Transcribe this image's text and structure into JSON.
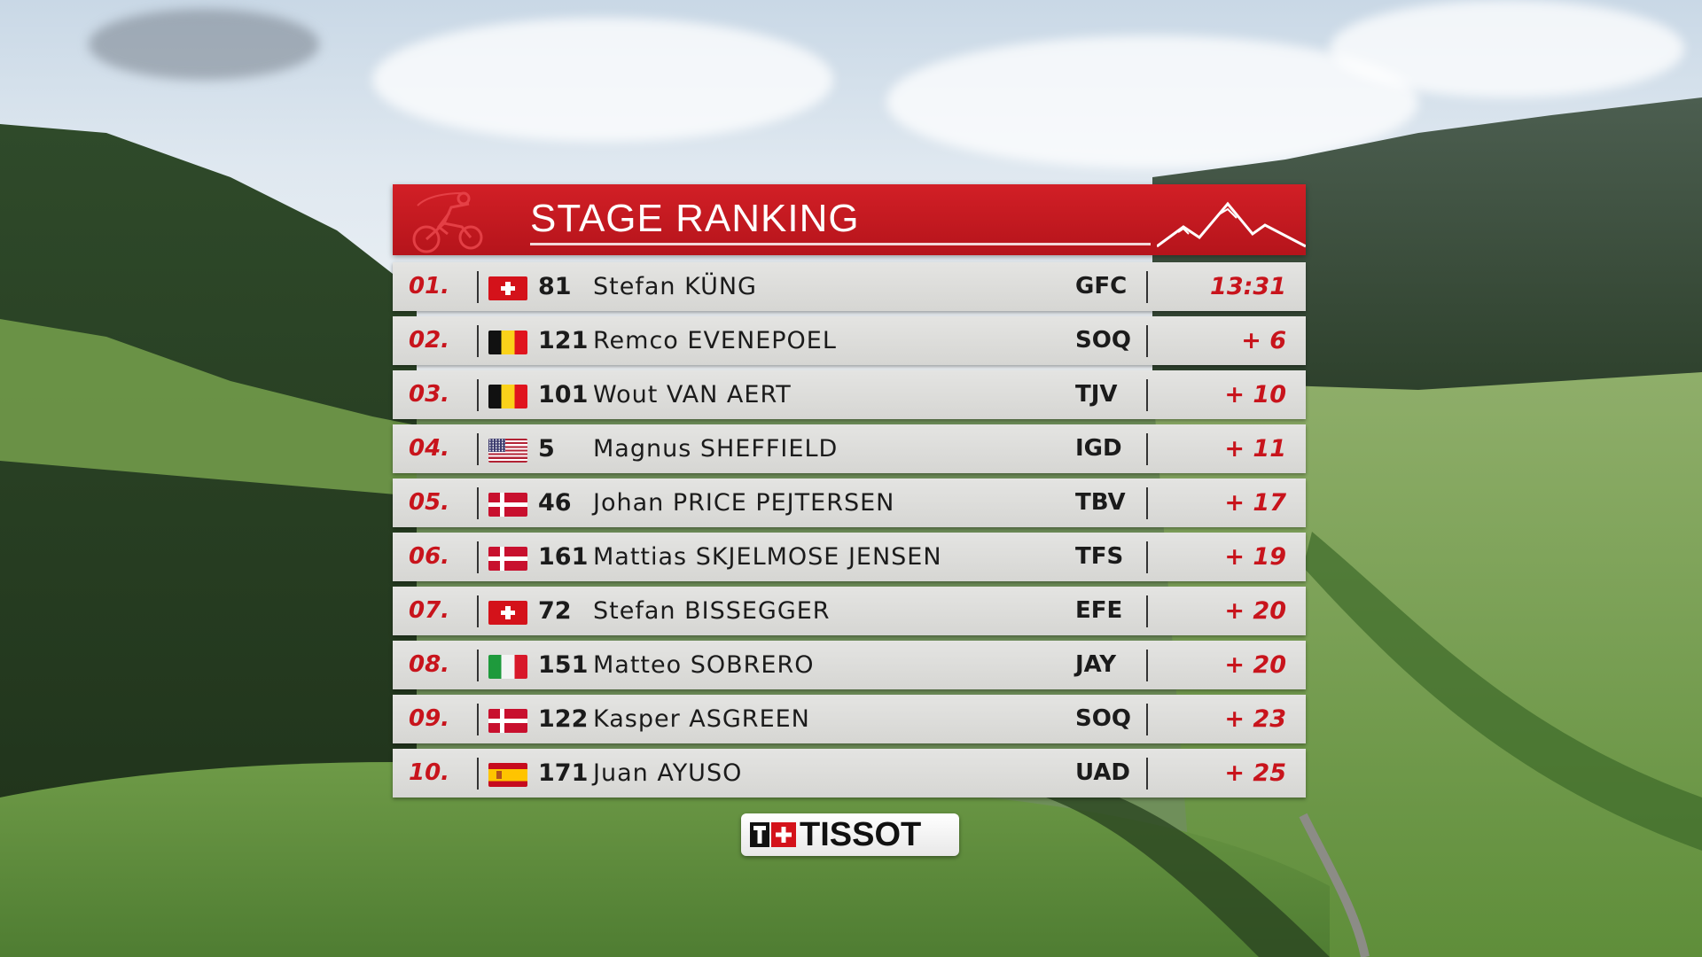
{
  "header": {
    "title": "STAGE RANKING"
  },
  "columns": [
    "pos",
    "flag",
    "bib",
    "name",
    "team",
    "time"
  ],
  "rows": [
    {
      "pos": "01.",
      "flag": "ch",
      "bib": "81",
      "name": "Stefan KÜNG",
      "team": "GFC",
      "time": "13:31"
    },
    {
      "pos": "02.",
      "flag": "be",
      "bib": "121",
      "name": "Remco EVENEPOEL",
      "team": "SOQ",
      "time": "+ 6"
    },
    {
      "pos": "03.",
      "flag": "be",
      "bib": "101",
      "name": "Wout VAN AERT",
      "team": "TJV",
      "time": "+ 10"
    },
    {
      "pos": "04.",
      "flag": "us",
      "bib": "5",
      "name": "Magnus SHEFFIELD",
      "team": "IGD",
      "time": "+ 11"
    },
    {
      "pos": "05.",
      "flag": "dk",
      "bib": "46",
      "name": "Johan PRICE PEJTERSEN",
      "team": "TBV",
      "time": "+ 17"
    },
    {
      "pos": "06.",
      "flag": "dk",
      "bib": "161",
      "name": "Mattias SKJELMOSE JENSEN",
      "team": "TFS",
      "time": "+ 19"
    },
    {
      "pos": "07.",
      "flag": "ch",
      "bib": "72",
      "name": "Stefan BISSEGGER",
      "team": "EFE",
      "time": "+ 20"
    },
    {
      "pos": "08.",
      "flag": "it",
      "bib": "151",
      "name": "Matteo SOBRERO",
      "team": "JAY",
      "time": "+ 20"
    },
    {
      "pos": "09.",
      "flag": "dk",
      "bib": "122",
      "name": "Kasper ASGREEN",
      "team": "SOQ",
      "time": "+ 23"
    },
    {
      "pos": "10.",
      "flag": "es",
      "bib": "171",
      "name": "Juan AYUSO",
      "team": "UAD",
      "time": "+ 25"
    }
  ],
  "sponsor": {
    "label": "TISSOT"
  },
  "colors": {
    "header_red": "#c8171f",
    "time_red": "#c8141c",
    "row_grey": "#dcdcd9"
  },
  "icons": {
    "header_left": "cyclist-icon",
    "header_right": "mountain-icon",
    "sponsor": "swiss-cross-logo"
  }
}
